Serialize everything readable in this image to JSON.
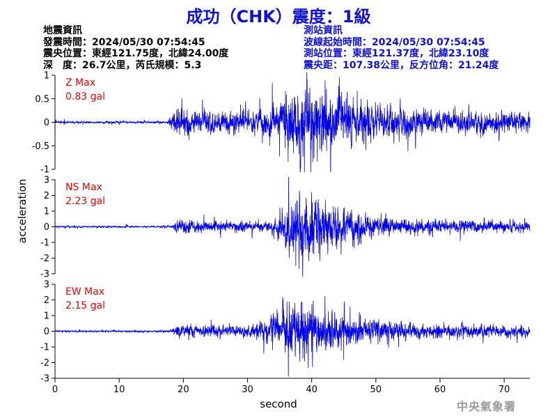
{
  "header": {
    "title": "成功（CHK）震度：1級"
  },
  "event_info": {
    "heading": "地震資訊",
    "origin_time": "發震時間：2024/05/30 07:54:45",
    "epicenter": "震央位置：東經121.75度，北緯24.00度",
    "depth_magnitude": "深　度：26.7公里，芮氏規模：5.3"
  },
  "station_info": {
    "heading": "測站資訊",
    "wave_start": "波線起始時間：2024/05/30 07:54:45",
    "station_location": "測站位置：東經121.37度，北緯23.10度",
    "distance_azimuth": "震央距：107.38公里，反方位角：21.24度"
  },
  "footer": {
    "agency": "中央氣象署"
  },
  "colors": {
    "trace": "#0000ee",
    "label": "#ee0000",
    "title": "#1010d0",
    "axis": "#000000"
  },
  "chart_data": [
    {
      "type": "line",
      "component": "Z",
      "label_line1": "Z Max",
      "label_line2": "0.83 gal",
      "peak_gal": 0.83,
      "ylim": [
        -1,
        1
      ],
      "yticks": [
        -1,
        -0.5,
        0,
        0.5,
        1
      ],
      "ytick_labels": [
        "-1",
        "-0.5",
        "0",
        "0.5",
        "1"
      ],
      "xlim": [
        0,
        74
      ],
      "envelope": {
        "noise": 0.02,
        "onset_s": 17.5,
        "p_level": 0.22,
        "s_onset_s": 31,
        "s_peak_s": 38,
        "s_level": 0.55,
        "decay_s": 8,
        "coda_level": 0.07
      }
    },
    {
      "type": "line",
      "component": "NS",
      "label_line1": "NS Max",
      "label_line2": "2.23 gal",
      "peak_gal": 2.23,
      "ylim": [
        -3,
        3
      ],
      "yticks": [
        -3,
        -2,
        -1,
        0,
        1,
        2,
        3
      ],
      "ytick_labels": [
        "-3",
        "-2",
        "-1",
        "0",
        "1",
        "2",
        "3"
      ],
      "xlim": [
        0,
        74
      ],
      "envelope": {
        "noise": 0.05,
        "onset_s": 18,
        "p_level": 0.28,
        "s_onset_s": 33,
        "s_peak_s": 38,
        "s_level": 1.5,
        "decay_s": 6,
        "coda_level": 0.2
      }
    },
    {
      "type": "line",
      "component": "EW",
      "label_line1": "EW Max",
      "label_line2": "2.15 gal",
      "peak_gal": 2.15,
      "ylim": [
        -3,
        3
      ],
      "yticks": [
        -3,
        -2,
        -1,
        0,
        1,
        2,
        3
      ],
      "ytick_labels": [
        "-3",
        "-2",
        "-1",
        "0",
        "1",
        "2",
        "3"
      ],
      "xlim": [
        0,
        74
      ],
      "envelope": {
        "noise": 0.05,
        "onset_s": 18,
        "p_level": 0.3,
        "s_onset_s": 30,
        "s_peak_s": 37,
        "s_level": 1.3,
        "decay_s": 7,
        "coda_level": 0.18
      }
    }
  ],
  "axes": {
    "ylabel": "acceleration",
    "xlabel": "second",
    "xticks": [
      0,
      10,
      20,
      30,
      40,
      50,
      60,
      70
    ],
    "xtick_labels": [
      "0",
      "10",
      "20",
      "30",
      "40",
      "50",
      "60",
      "70"
    ]
  }
}
